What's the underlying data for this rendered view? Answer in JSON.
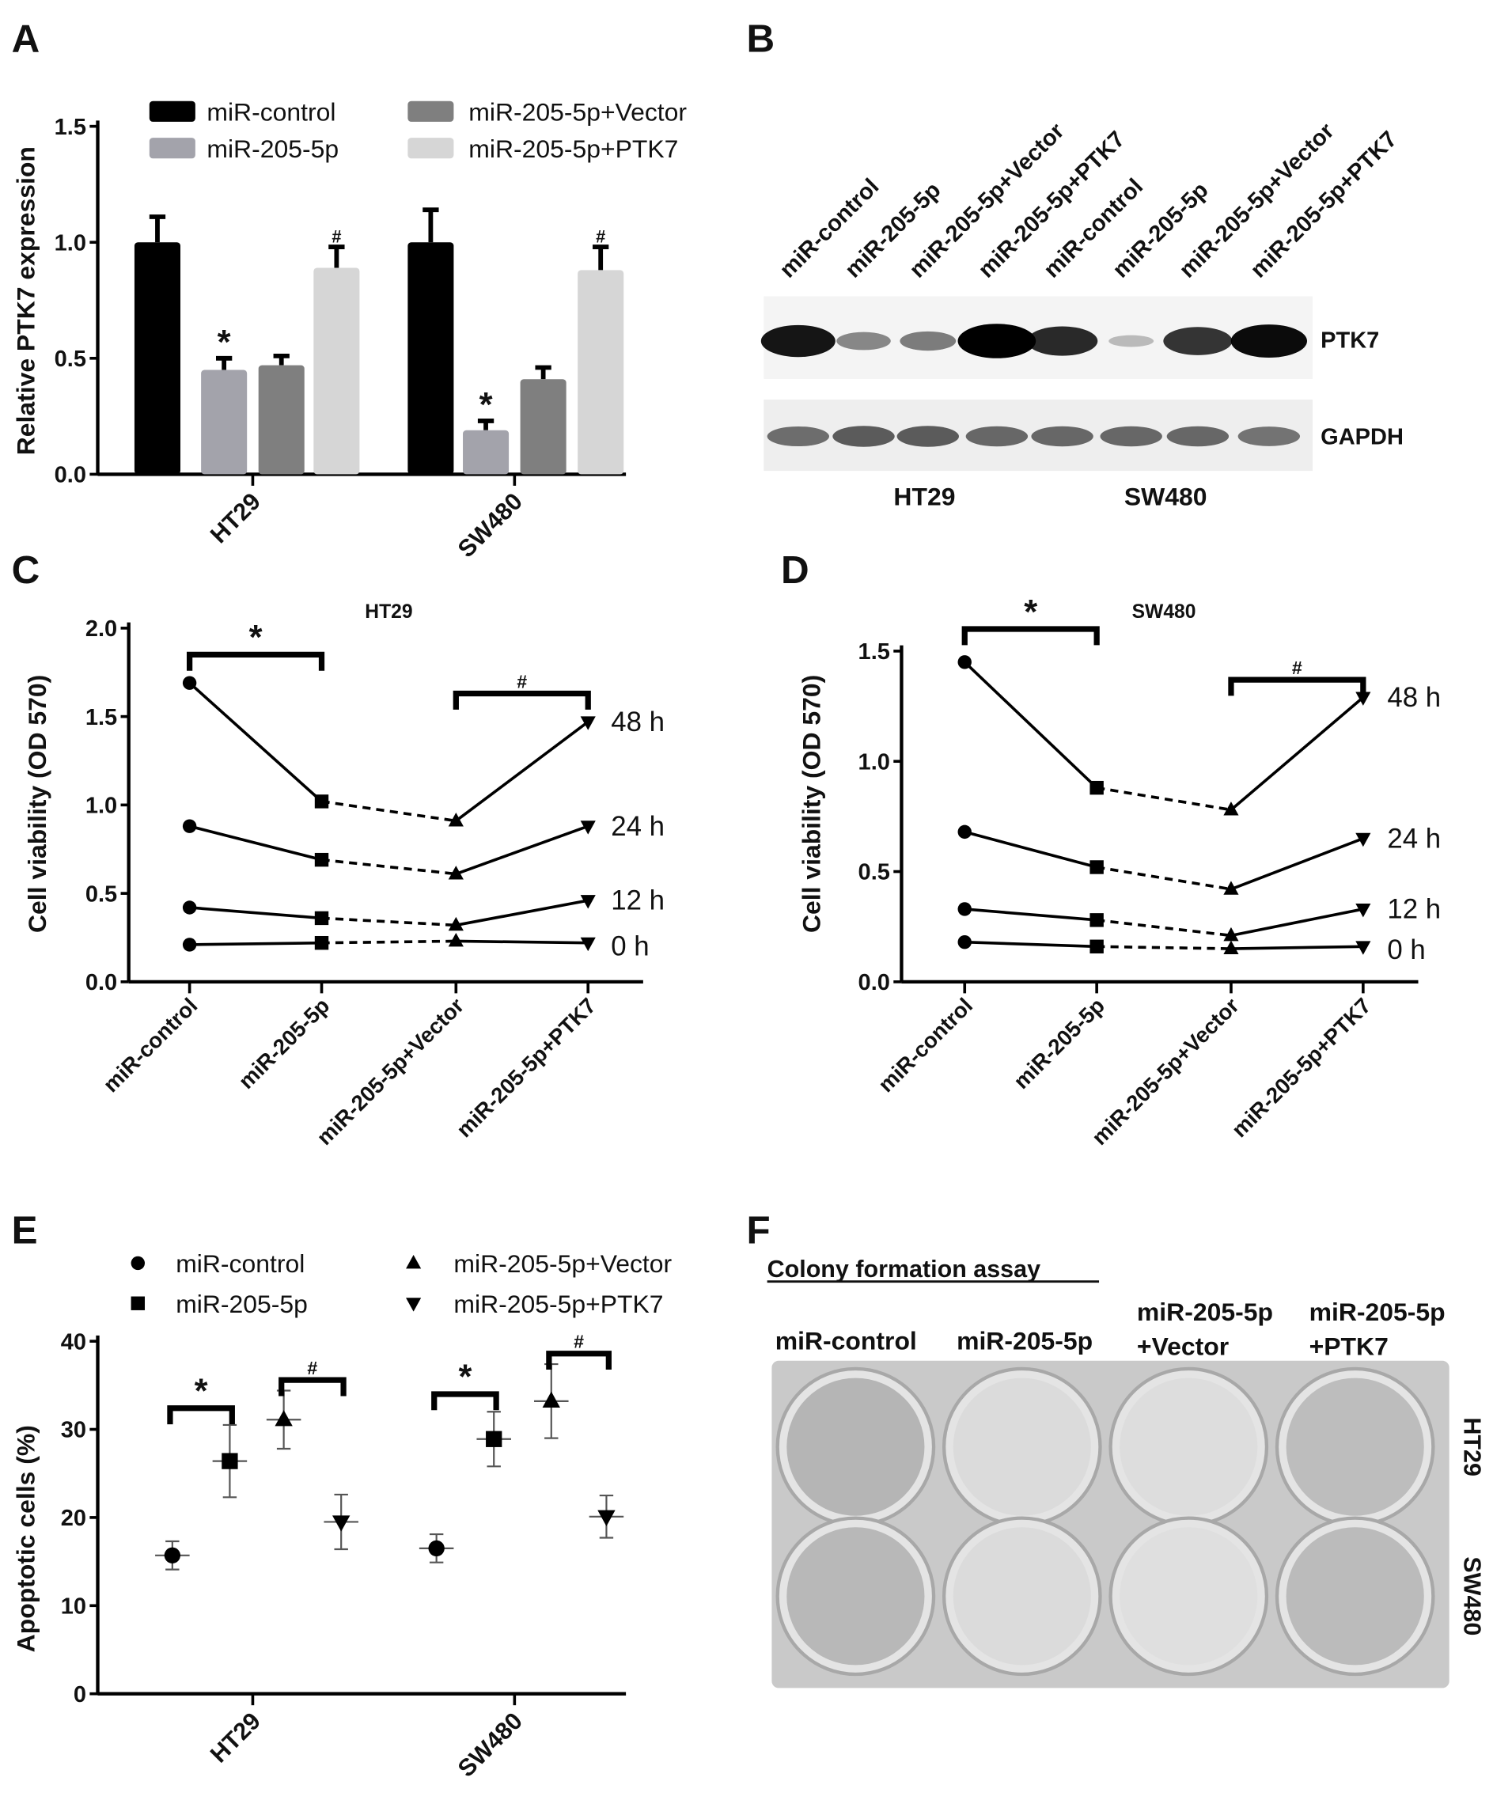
{
  "panels": {
    "A": "A",
    "B": "B",
    "C": "C",
    "D": "D",
    "E": "E",
    "F": "F"
  },
  "groups": [
    "miR-control",
    "miR-205-5p",
    "miR-205-5p+Vector",
    "miR-205-5p+PTK7"
  ],
  "colors": {
    "control": "#000000",
    "mir": "#a3a3ab",
    "vector": "#7f7f7f",
    "ptk7": "#d6d6d6"
  },
  "chart_data": [
    {
      "panel": "A",
      "type": "bar",
      "ylabel": "Relative PTK7 expression",
      "ylim": [
        0,
        1.5
      ],
      "yticks": [
        "0.0",
        "0.5",
        "1.0",
        "1.5"
      ],
      "categories": [
        "HT29",
        "SW480"
      ],
      "legend": [
        "miR-control",
        "miR-205-5p",
        "miR-205-5p+Vector",
        "miR-205-5p+PTK7"
      ],
      "series": [
        {
          "name": "miR-control",
          "values": [
            1.0,
            1.0
          ],
          "err": [
            0.11,
            0.14
          ]
        },
        {
          "name": "miR-205-5p",
          "values": [
            0.45,
            0.19
          ],
          "err": [
            0.05,
            0.04
          ],
          "annot": [
            "*",
            "*"
          ]
        },
        {
          "name": "miR-205-5p+Vector",
          "values": [
            0.47,
            0.41
          ],
          "err": [
            0.04,
            0.05
          ]
        },
        {
          "name": "miR-205-5p+PTK7",
          "values": [
            0.89,
            0.88
          ],
          "err": [
            0.09,
            0.1
          ],
          "annot": [
            "#",
            "#"
          ]
        }
      ]
    },
    {
      "panel": "C",
      "type": "line",
      "title": "HT29",
      "ylabel": "Cell viability (OD 570)",
      "ylim": [
        0,
        2.0
      ],
      "yticks": [
        "0.0",
        "0.5",
        "1.0",
        "1.5",
        "2.0"
      ],
      "categories": [
        "miR-control",
        "miR-205-5p",
        "miR-205-5p+Vector",
        "miR-205-5p+PTK7"
      ],
      "series": [
        {
          "name": "0 h",
          "values": [
            0.21,
            0.22,
            0.23,
            0.22
          ]
        },
        {
          "name": "12 h",
          "values": [
            0.42,
            0.36,
            0.32,
            0.46
          ]
        },
        {
          "name": "24 h",
          "values": [
            0.88,
            0.69,
            0.61,
            0.88
          ]
        },
        {
          "name": "48 h",
          "values": [
            1.69,
            1.02,
            0.91,
            1.47
          ]
        }
      ],
      "brackets": [
        {
          "label": "*",
          "from": 0,
          "to": 1,
          "y": 1.85
        },
        {
          "label": "#",
          "from": 2,
          "to": 3,
          "y": 1.63
        }
      ]
    },
    {
      "panel": "D",
      "type": "line",
      "title": "SW480",
      "ylabel": "Cell viability (OD 570)",
      "ylim": [
        0,
        1.5
      ],
      "yticks": [
        "0.0",
        "0.5",
        "1.0",
        "1.5"
      ],
      "categories": [
        "miR-control",
        "miR-205-5p",
        "miR-205-5p+Vector",
        "miR-205-5p+PTK7"
      ],
      "series": [
        {
          "name": "0 h",
          "values": [
            0.18,
            0.16,
            0.15,
            0.16
          ]
        },
        {
          "name": "12 h",
          "values": [
            0.33,
            0.28,
            0.21,
            0.33
          ]
        },
        {
          "name": "24 h",
          "values": [
            0.68,
            0.52,
            0.42,
            0.65
          ]
        },
        {
          "name": "48 h",
          "values": [
            1.45,
            0.88,
            0.78,
            1.29
          ]
        }
      ],
      "brackets": [
        {
          "label": "*",
          "from": 0,
          "to": 1,
          "y": 1.6
        },
        {
          "label": "#",
          "from": 2,
          "to": 3,
          "y": 1.37
        }
      ]
    },
    {
      "panel": "E",
      "type": "scatter",
      "ylabel": "Apoptotic cells (%)",
      "ylim": [
        0,
        40
      ],
      "yticks": [
        "0",
        "10",
        "20",
        "30",
        "40"
      ],
      "categories": [
        "HT29",
        "SW480"
      ],
      "legend": [
        "miR-control",
        "miR-205-5p",
        "miR-205-5p+Vector",
        "miR-205-5p+PTK7"
      ],
      "series": [
        {
          "name": "miR-control",
          "marker": "circle",
          "values": [
            15.7,
            16.5
          ],
          "err": [
            1.6,
            1.6
          ]
        },
        {
          "name": "miR-205-5p",
          "marker": "square",
          "values": [
            26.4,
            28.9
          ],
          "err": [
            4.1,
            3.1
          ]
        },
        {
          "name": "miR-205-5p+Vector",
          "marker": "triangle-up",
          "values": [
            31.1,
            33.2
          ],
          "err": [
            3.3,
            4.2
          ]
        },
        {
          "name": "miR-205-5p+PTK7",
          "marker": "triangle-down",
          "values": [
            19.5,
            20.1
          ],
          "err": [
            3.1,
            2.4
          ]
        }
      ],
      "brackets": [
        {
          "label": "*",
          "cat": 0,
          "from": 0,
          "to": 1,
          "y": 32.4
        },
        {
          "label": "#",
          "cat": 0,
          "from": 2,
          "to": 3,
          "y": 35.6
        },
        {
          "label": "*",
          "cat": 1,
          "from": 0,
          "to": 1,
          "y": 34.0
        },
        {
          "label": "#",
          "cat": 1,
          "from": 2,
          "to": 3,
          "y": 38.6
        }
      ]
    }
  ],
  "blot": {
    "lanes": [
      "miR-control",
      "miR-205-5p",
      "miR-205-5p+Vector",
      "miR-205-5p+PTK7",
      "miR-control",
      "miR-205-5p",
      "miR-205-5p+Vector",
      "miR-205-5p+PTK7"
    ],
    "proteins": [
      "PTK7",
      "GAPDH"
    ],
    "cell_lines": [
      "HT29",
      "SW480"
    ],
    "ptk7_intensity": [
      0.9,
      0.35,
      0.4,
      1.0,
      0.8,
      0.1,
      0.75,
      0.95
    ],
    "gapdh_intensity": [
      0.55,
      0.7,
      0.7,
      0.6,
      0.6,
      0.6,
      0.6,
      0.5
    ]
  },
  "colony": {
    "title": "Colony formation assay",
    "columns": [
      [
        "miR-control"
      ],
      [
        "miR-205-5p"
      ],
      [
        "miR-205-5p",
        "+Vector"
      ],
      [
        "miR-205-5p",
        "+PTK7"
      ]
    ],
    "rows": [
      "HT29",
      "SW480"
    ],
    "density": [
      [
        0.85,
        0.15,
        0.12,
        0.7
      ],
      [
        0.8,
        0.15,
        0.1,
        0.75
      ]
    ]
  }
}
